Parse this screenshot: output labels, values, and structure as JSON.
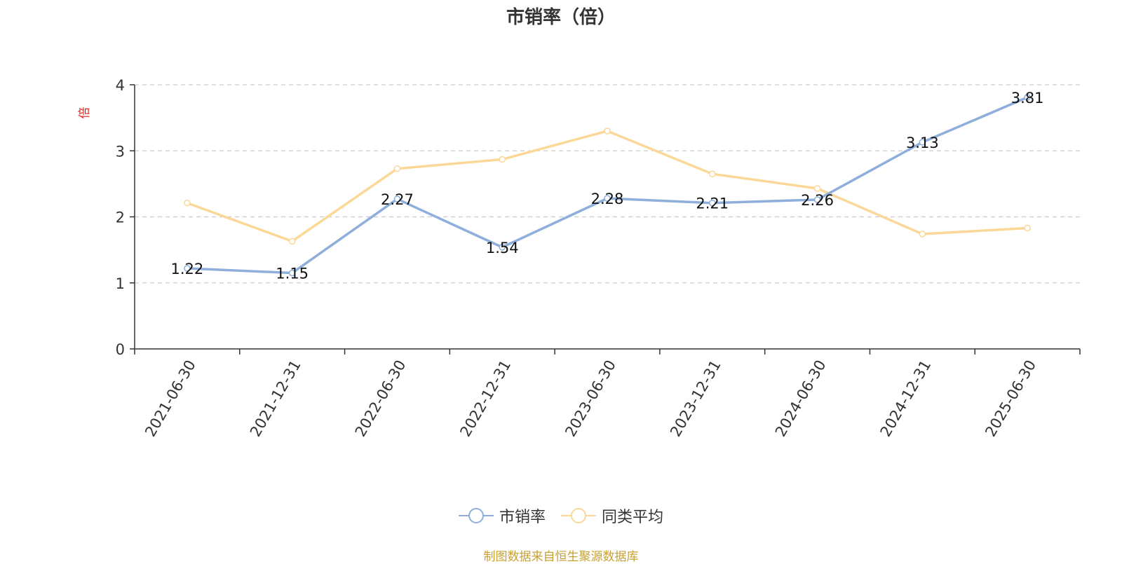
{
  "chart_data": {
    "type": "line",
    "title": "市销率（倍）",
    "ylabel": "倍",
    "xlabel": "",
    "ylim": [
      0,
      4
    ],
    "yticks": [
      "0",
      "1",
      "2",
      "3",
      "4"
    ],
    "categories": [
      "2021-06-30",
      "2021-12-31",
      "2022-06-30",
      "2022-12-31",
      "2023-06-30",
      "2023-12-31",
      "2024-06-30",
      "2024-12-31",
      "2025-06-30"
    ],
    "grid": true,
    "legend_position": "bottom",
    "series": [
      {
        "name": "市销率",
        "color": "#8eaedb",
        "values": [
          1.22,
          1.15,
          2.27,
          1.54,
          2.28,
          2.21,
          2.26,
          3.13,
          3.81
        ],
        "labels": [
          "1.22",
          "1.15",
          "2.27",
          "1.54",
          "2.28",
          "2.21",
          "2.26",
          "3.13",
          "3.81"
        ]
      },
      {
        "name": "同类平均",
        "color": "#fcd898",
        "values": [
          2.21,
          1.63,
          2.73,
          2.87,
          3.3,
          2.65,
          2.43,
          1.74,
          1.83
        ]
      }
    ]
  },
  "source_note": "制图数据来自恒生聚源数据库"
}
